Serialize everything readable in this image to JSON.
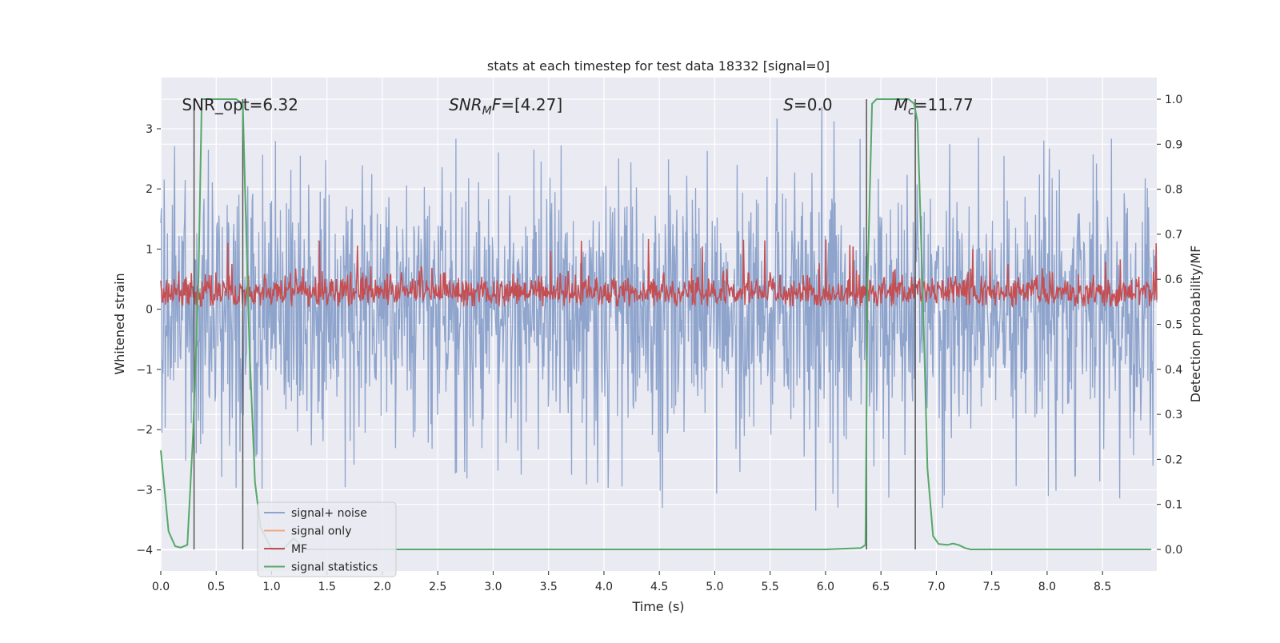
{
  "chart_data": {
    "type": "line",
    "title": "stats at each timestep for test data 18332 [signal=0]",
    "xlabel": "Time (s)",
    "ylabel_left": "Whitened strain",
    "ylabel_right": "Detection probability/MF",
    "xlim": [
      0.0,
      8.99
    ],
    "ylim_left": [
      -4.35,
      3.85
    ],
    "ylim_right": [
      -0.048,
      1.048
    ],
    "x_ticks": [
      0.0,
      0.5,
      1.0,
      1.5,
      2.0,
      2.5,
      3.0,
      3.5,
      4.0,
      4.5,
      5.0,
      5.5,
      6.0,
      6.5,
      7.0,
      7.5,
      8.0,
      8.5
    ],
    "x_tick_labels": [
      "0.0",
      "0.5",
      "1.0",
      "1.5",
      "2.0",
      "2.5",
      "3.0",
      "3.5",
      "4.0",
      "4.5",
      "5.0",
      "5.5",
      "6.0",
      "6.5",
      "7.0",
      "7.5",
      "8.0",
      "8.5"
    ],
    "y_left_ticks": [
      -4,
      -3,
      -2,
      -1,
      0,
      1,
      2,
      3
    ],
    "y_left_tick_labels": [
      "−4",
      "−3",
      "−2",
      "−1",
      "0",
      "1",
      "2",
      "3"
    ],
    "y_right_ticks": [
      0.0,
      0.1,
      0.2,
      0.3,
      0.4,
      0.5,
      0.6,
      0.7,
      0.8,
      0.9,
      1.0
    ],
    "y_right_tick_labels": [
      "0.0",
      "0.1",
      "0.2",
      "0.3",
      "0.4",
      "0.5",
      "0.6",
      "0.7",
      "0.8",
      "0.9",
      "1.0"
    ],
    "grid": true,
    "legend_position": "lower-left",
    "annotations": [
      {
        "text": "SNR_opt=6.32",
        "x": 0.19,
        "y": 3.4
      },
      {
        "text": "SNR_MF=[4.27]",
        "x": 2.6,
        "y": 3.4
      },
      {
        "text": "S=0.0",
        "x": 5.62,
        "y": 3.4
      },
      {
        "text": "M_c=11.77",
        "x": 6.62,
        "y": 3.4
      }
    ],
    "vertical_lines_x": [
      0.3,
      0.74,
      6.37,
      6.81
    ],
    "colors": {
      "background": "#eaeaf2",
      "grid": "#ffffff",
      "signal_noise": "#8ea4cc",
      "signal_only": "#f0a682",
      "mf": "#c44e52",
      "signal_statistics": "#55a868",
      "vline": "#555555"
    },
    "series": [
      {
        "name": "signal+ noise",
        "axis": "left",
        "style": "dense noise, approx. N(0, 1) clipped to [-4, 3.5]",
        "envelope_x": [
          0.0,
          0.5,
          1.0,
          1.5,
          2.0,
          2.5,
          3.0,
          3.5,
          4.0,
          4.5,
          5.0,
          5.5,
          6.0,
          6.5,
          7.0,
          7.5,
          8.0,
          8.5,
          8.99
        ],
        "envelope_max": [
          3.0,
          2.7,
          3.0,
          2.7,
          2.6,
          2.8,
          3.3,
          2.7,
          2.8,
          2.9,
          2.6,
          3.2,
          3.4,
          2.9,
          2.7,
          2.9,
          2.8,
          2.9,
          2.5
        ],
        "envelope_min": [
          -2.8,
          -3.0,
          -3.2,
          -3.0,
          -3.0,
          -2.6,
          -3.0,
          -2.5,
          -3.1,
          -3.3,
          -3.3,
          -4.0,
          -3.6,
          -3.4,
          -3.3,
          -3.3,
          -3.1,
          -3.3,
          -2.8
        ]
      },
      {
        "name": "signal only",
        "axis": "left",
        "x": [],
        "y": []
      },
      {
        "name": "MF",
        "axis": "right",
        "style": "dense noise around 0.6",
        "baseline": 0.57,
        "envelope_max": 0.69,
        "envelope_min": 0.54
      },
      {
        "name": "signal statistics",
        "axis": "right",
        "x": [
          0.0,
          0.07,
          0.13,
          0.18,
          0.24,
          0.29,
          0.34,
          0.37,
          0.44,
          0.55,
          0.68,
          0.74,
          0.76,
          0.8,
          0.85,
          0.9,
          1.0,
          1.1,
          1.2,
          1.3,
          1.5,
          2.0,
          3.0,
          4.0,
          5.0,
          6.0,
          6.32,
          6.36,
          6.38,
          6.42,
          6.46,
          6.5,
          6.75,
          6.8,
          6.83,
          6.88,
          6.92,
          6.97,
          7.02,
          7.1,
          7.15,
          7.2,
          7.26,
          7.31,
          7.4,
          8.0,
          8.94
        ],
        "y": [
          0.22,
          0.04,
          0.007,
          0.004,
          0.01,
          0.25,
          0.6,
          1.0,
          1.0,
          1.0,
          1.0,
          0.99,
          0.8,
          0.45,
          0.15,
          0.05,
          0.0,
          0.0,
          0.025,
          0.0,
          0.0,
          0.0,
          0.0,
          0.0,
          0.0,
          0.0,
          0.003,
          0.01,
          0.6,
          0.99,
          1.0,
          1.0,
          1.0,
          0.99,
          0.95,
          0.55,
          0.18,
          0.03,
          0.012,
          0.01,
          0.013,
          0.01,
          0.003,
          0.0,
          0.0,
          0.0,
          0.0
        ]
      }
    ]
  }
}
